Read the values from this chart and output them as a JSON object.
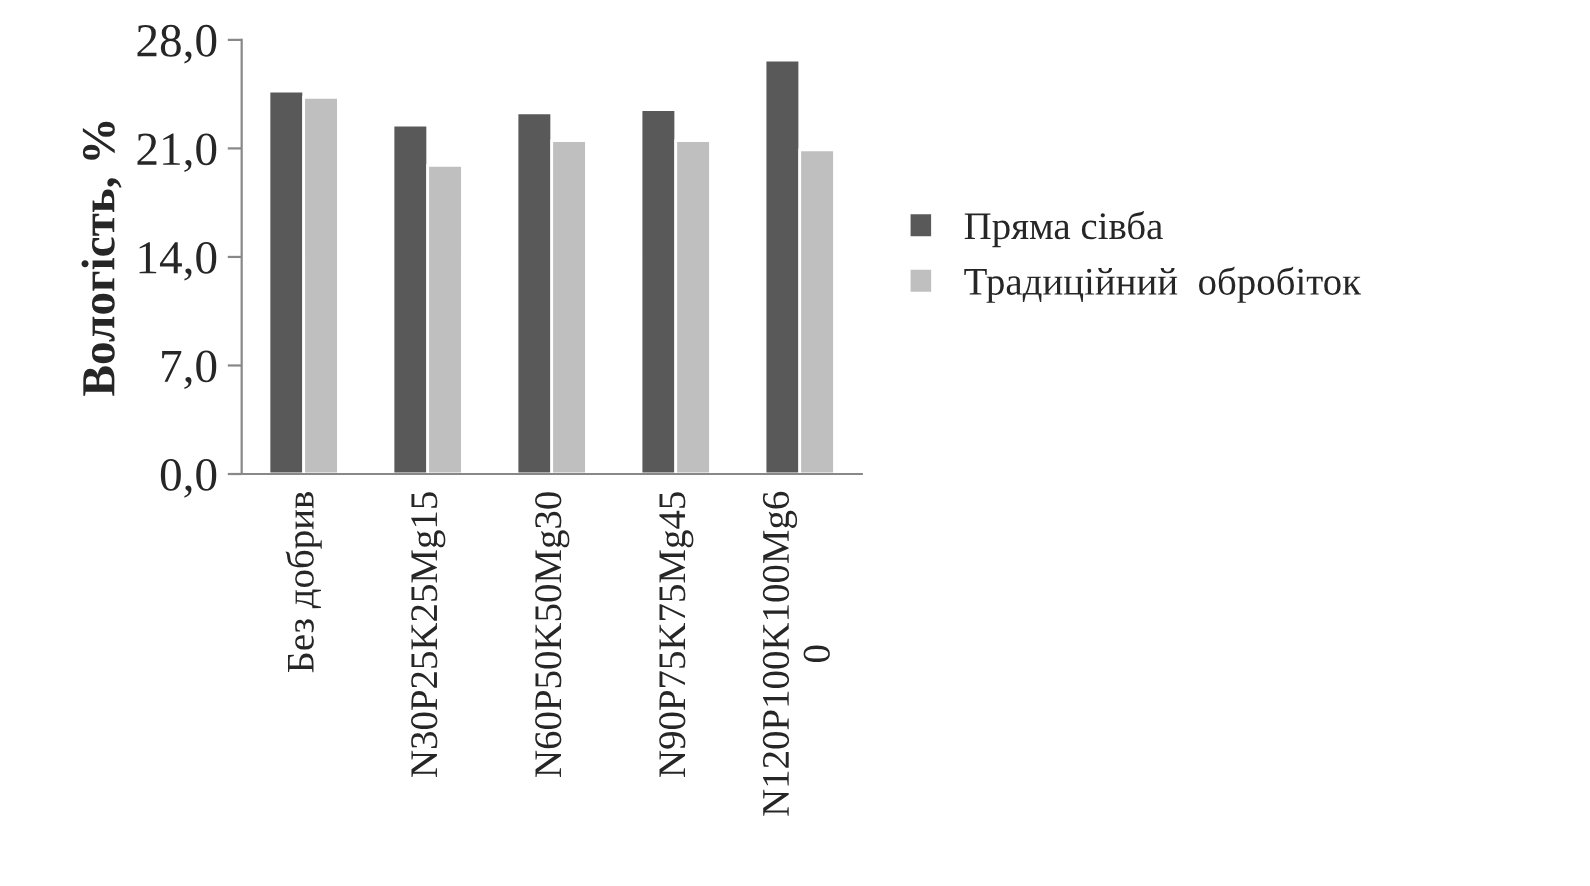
{
  "chart_data": {
    "type": "bar",
    "ylabel": "Вологість, %",
    "categories": [
      "Без добрив",
      "N30P25K25Mg15",
      "N60P50K50Mg30",
      "N90P75K75Mg45",
      "N120P100K100Mg60"
    ],
    "series": [
      {
        "name": "Пряма сівба",
        "color": "#595959",
        "values": [
          24.7,
          22.5,
          23.3,
          23.5,
          26.7
        ]
      },
      {
        "name": "Традиційний  обробіток",
        "color": "#bfbfbf",
        "values": [
          24.3,
          19.9,
          21.5,
          21.5,
          20.9
        ]
      }
    ],
    "ylim": [
      0,
      28
    ],
    "yticks": [
      {
        "value": 0,
        "label": "0,0"
      },
      {
        "value": 7,
        "label": "7,0"
      },
      {
        "value": 14,
        "label": "14,0"
      },
      {
        "value": 21,
        "label": "21,0"
      },
      {
        "value": 28,
        "label": "28,0"
      }
    ],
    "legend": "right"
  }
}
